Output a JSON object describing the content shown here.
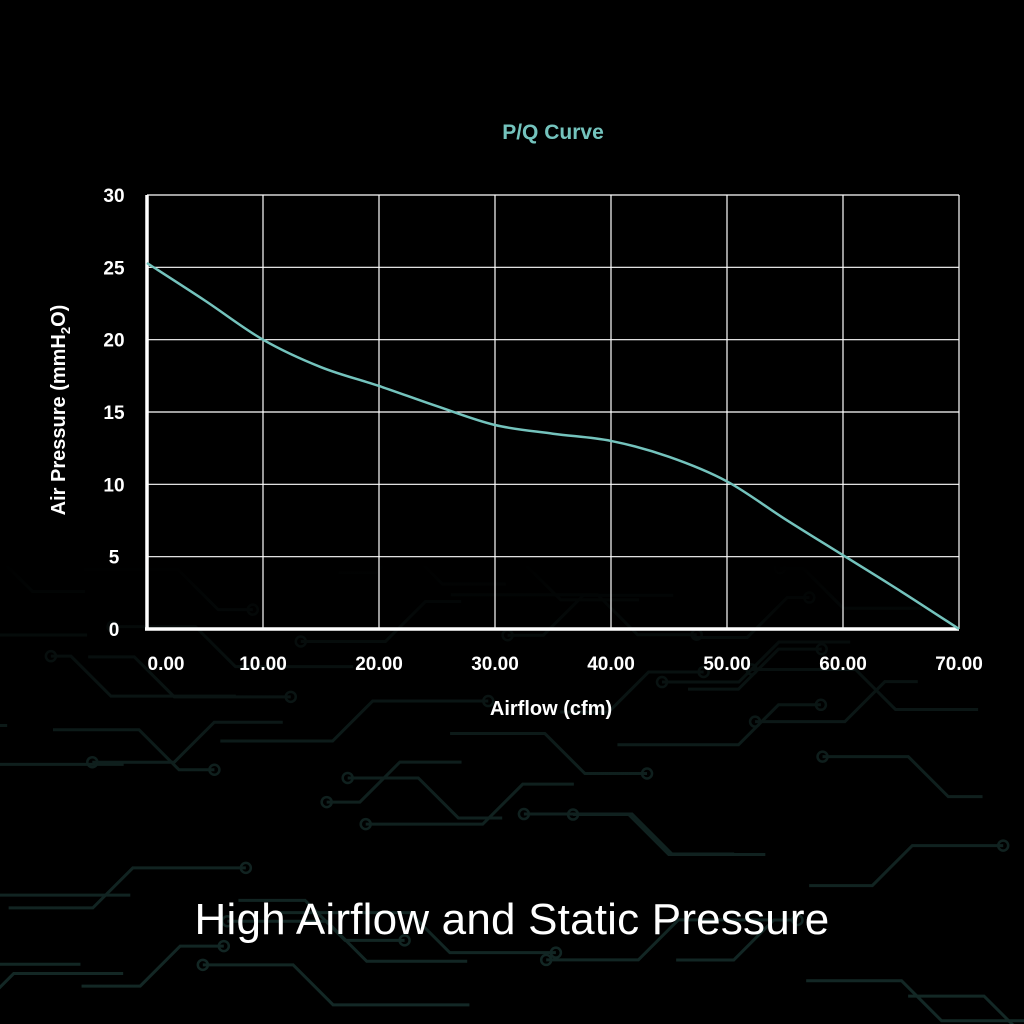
{
  "colors": {
    "background": "#000000",
    "accent": "#74c3bd",
    "grid": "#ffffff",
    "text": "#ffffff",
    "circuit": "#17302d"
  },
  "headline": "High Airflow and Static Pressure",
  "chart_data": {
    "type": "line",
    "title": "P/Q Curve",
    "xlabel": "Airflow (cfm)",
    "ylabel_main": "Air Pressure (mmH",
    "ylabel_sub": "2",
    "ylabel_tail": "O)",
    "xlim": [
      0,
      70
    ],
    "ylim": [
      0,
      30
    ],
    "x_ticks": [
      0,
      10,
      20,
      30,
      40,
      50,
      60,
      70
    ],
    "x_tick_labels": [
      "0.00",
      "10.00",
      "20.00",
      "30.00",
      "40.00",
      "50.00",
      "60.00",
      "70.00"
    ],
    "y_ticks": [
      0,
      5,
      10,
      15,
      20,
      25,
      30
    ],
    "y_tick_labels": [
      "0",
      "5",
      "10",
      "15",
      "20",
      "25",
      "30"
    ],
    "grid": true,
    "legend": "none",
    "series": [
      {
        "color": "#74c3bd",
        "x": [
          0,
          5,
          10,
          15,
          20,
          25,
          30,
          35,
          40,
          45,
          50,
          55,
          60,
          65,
          70
        ],
        "y": [
          25.3,
          22.7,
          20.0,
          18.1,
          16.8,
          15.4,
          14.1,
          13.5,
          13.0,
          11.9,
          10.2,
          7.6,
          5.1,
          2.6,
          0
        ]
      }
    ]
  }
}
